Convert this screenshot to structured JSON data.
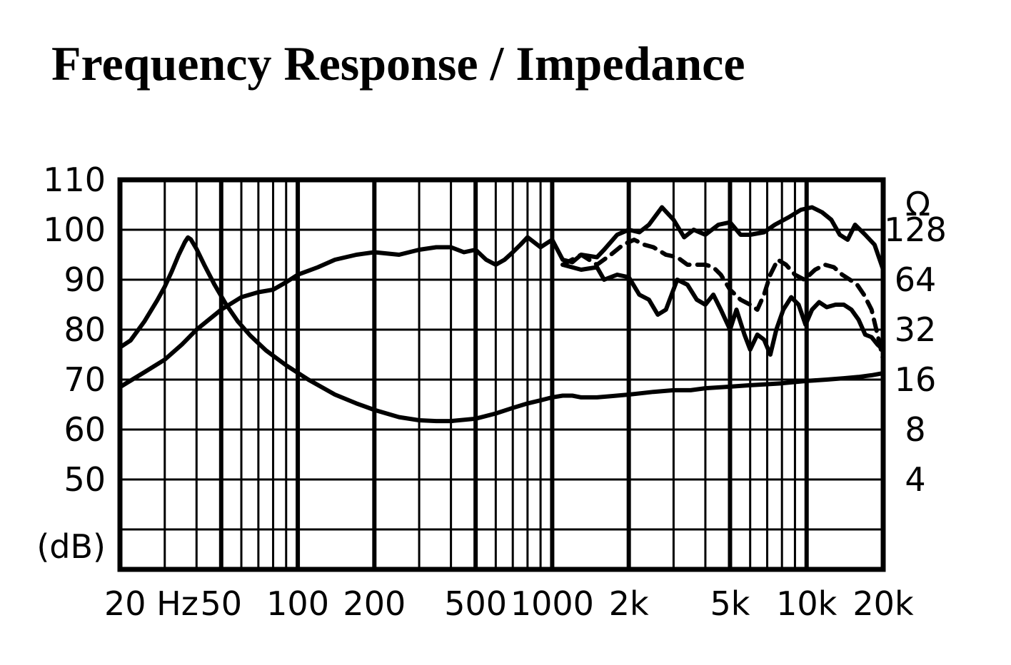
{
  "chart_data": {
    "type": "line",
    "title": "Frequency Response / Impedance",
    "x_scale": "log",
    "xlim": [
      20,
      20000
    ],
    "x_ticks": [
      {
        "value": 20,
        "label": "20 Hz"
      },
      {
        "value": 50,
        "label": "50"
      },
      {
        "value": 100,
        "label": "100"
      },
      {
        "value": 200,
        "label": "200"
      },
      {
        "value": 500,
        "label": "500"
      },
      {
        "value": 1000,
        "label": "1000"
      },
      {
        "value": 2000,
        "label": "2k"
      },
      {
        "value": 5000,
        "label": "5k"
      },
      {
        "value": 10000,
        "label": "10k"
      },
      {
        "value": 20000,
        "label": "20k"
      }
    ],
    "ylim": [
      32,
      110
    ],
    "y_ticks": [
      {
        "value": 110,
        "label": "110"
      },
      {
        "value": 100,
        "label": "100"
      },
      {
        "value": 90,
        "label": "90"
      },
      {
        "value": 80,
        "label": "80"
      },
      {
        "value": 70,
        "label": "70"
      },
      {
        "value": 60,
        "label": "60"
      },
      {
        "value": 50,
        "label": "50"
      }
    ],
    "ylabel": "(dB)",
    "y2_scale": "log2",
    "y2_unit": "Ω",
    "y2_ticks": [
      {
        "value": 128,
        "label": "128"
      },
      {
        "value": 64,
        "label": "64"
      },
      {
        "value": 32,
        "label": "32"
      },
      {
        "value": 16,
        "label": "16"
      },
      {
        "value": 8,
        "label": "8"
      },
      {
        "value": 4,
        "label": "4"
      }
    ],
    "grid": true,
    "series": [
      {
        "style": "solid",
        "axis": "y",
        "points": [
          [
            20,
            68.5
          ],
          [
            25,
            71.5
          ],
          [
            30,
            74
          ],
          [
            35,
            77
          ],
          [
            40,
            80
          ],
          [
            50,
            84
          ],
          [
            60,
            86.5
          ],
          [
            70,
            87.5
          ],
          [
            80,
            88
          ],
          [
            90,
            89.5
          ],
          [
            100,
            91
          ],
          [
            120,
            92.5
          ],
          [
            140,
            94
          ],
          [
            170,
            95
          ],
          [
            200,
            95.5
          ],
          [
            250,
            95
          ],
          [
            300,
            96
          ],
          [
            350,
            96.5
          ],
          [
            400,
            96.5
          ],
          [
            450,
            95.5
          ],
          [
            500,
            96
          ],
          [
            550,
            94
          ],
          [
            600,
            93
          ],
          [
            650,
            94
          ],
          [
            700,
            95.5
          ],
          [
            750,
            97
          ],
          [
            800,
            98.5
          ],
          [
            900,
            96.5
          ],
          [
            1000,
            98
          ],
          [
            1100,
            94
          ],
          [
            1200,
            93.5
          ],
          [
            1300,
            95
          ],
          [
            1500,
            94.5
          ],
          [
            1600,
            96
          ],
          [
            1800,
            99
          ],
          [
            2000,
            100
          ],
          [
            2200,
            99.5
          ],
          [
            2400,
            101
          ],
          [
            2700,
            104.5
          ],
          [
            3000,
            102
          ],
          [
            3300,
            98.5
          ],
          [
            3600,
            100
          ],
          [
            4000,
            99
          ],
          [
            4500,
            101
          ],
          [
            5000,
            101.5
          ],
          [
            5500,
            99
          ],
          [
            6000,
            99
          ],
          [
            6800,
            99.5
          ],
          [
            7500,
            101
          ],
          [
            8500,
            102.5
          ],
          [
            9500,
            104
          ],
          [
            10500,
            104.5
          ],
          [
            11500,
            103.5
          ],
          [
            12500,
            102
          ],
          [
            13500,
            99
          ],
          [
            14500,
            98
          ],
          [
            15500,
            101
          ],
          [
            17000,
            99
          ],
          [
            18500,
            97
          ],
          [
            20000,
            92
          ]
        ]
      },
      {
        "style": "dashed",
        "axis": "y",
        "points": [
          [
            1100,
            93
          ],
          [
            1300,
            95
          ],
          [
            1500,
            93
          ],
          [
            1700,
            95
          ],
          [
            1900,
            97
          ],
          [
            2100,
            98
          ],
          [
            2300,
            97
          ],
          [
            2500,
            96.5
          ],
          [
            2800,
            95
          ],
          [
            3100,
            94.5
          ],
          [
            3400,
            93
          ],
          [
            3700,
            93
          ],
          [
            4000,
            93
          ],
          [
            4300,
            92.5
          ],
          [
            4600,
            91
          ],
          [
            5000,
            88
          ],
          [
            5500,
            86
          ],
          [
            6000,
            85
          ],
          [
            6400,
            84
          ],
          [
            6800,
            87
          ],
          [
            7200,
            91
          ],
          [
            7700,
            94
          ],
          [
            8300,
            93
          ],
          [
            9000,
            91
          ],
          [
            9800,
            90
          ],
          [
            10800,
            92
          ],
          [
            11800,
            93
          ],
          [
            12800,
            92.5
          ],
          [
            13800,
            91
          ],
          [
            14800,
            90
          ],
          [
            15800,
            89
          ],
          [
            16800,
            87
          ],
          [
            18000,
            84
          ],
          [
            19200,
            78
          ],
          [
            20000,
            74
          ]
        ]
      },
      {
        "style": "solid",
        "axis": "y",
        "points": [
          [
            1100,
            93
          ],
          [
            1300,
            92
          ],
          [
            1500,
            92.5
          ],
          [
            1600,
            90
          ],
          [
            1800,
            91
          ],
          [
            2000,
            90.5
          ],
          [
            2200,
            87
          ],
          [
            2400,
            86
          ],
          [
            2600,
            83
          ],
          [
            2800,
            84
          ],
          [
            3100,
            90
          ],
          [
            3400,
            89
          ],
          [
            3700,
            86
          ],
          [
            4000,
            85
          ],
          [
            4300,
            87
          ],
          [
            4600,
            84
          ],
          [
            5000,
            80
          ],
          [
            5300,
            84
          ],
          [
            5700,
            79
          ],
          [
            6000,
            76
          ],
          [
            6400,
            79
          ],
          [
            6800,
            78
          ],
          [
            7200,
            75
          ],
          [
            7600,
            80
          ],
          [
            8100,
            84
          ],
          [
            8700,
            86.5
          ],
          [
            9300,
            85
          ],
          [
            9900,
            81
          ],
          [
            10500,
            84
          ],
          [
            11200,
            85.5
          ],
          [
            12000,
            84.5
          ],
          [
            13000,
            85
          ],
          [
            14000,
            85
          ],
          [
            15000,
            84
          ],
          [
            16000,
            82
          ],
          [
            17000,
            79
          ],
          [
            18000,
            78.5
          ],
          [
            19000,
            77
          ],
          [
            20000,
            76
          ]
        ]
      },
      {
        "style": "solid",
        "axis": "y2",
        "points": [
          [
            20,
            25
          ],
          [
            22,
            27.5
          ],
          [
            25,
            36
          ],
          [
            28,
            48
          ],
          [
            30,
            58
          ],
          [
            32,
            72
          ],
          [
            34,
            90
          ],
          [
            36,
            108
          ],
          [
            37,
            115
          ],
          [
            38,
            112
          ],
          [
            40,
            98
          ],
          [
            43,
            78
          ],
          [
            47,
            60
          ],
          [
            52,
            46
          ],
          [
            58,
            36
          ],
          [
            65,
            29.5
          ],
          [
            75,
            24
          ],
          [
            90,
            19.5
          ],
          [
            110,
            16
          ],
          [
            140,
            13
          ],
          [
            170,
            11.5
          ],
          [
            200,
            10.5
          ],
          [
            250,
            9.5
          ],
          [
            300,
            9.1
          ],
          [
            350,
            9
          ],
          [
            400,
            9
          ],
          [
            500,
            9.3
          ],
          [
            600,
            10
          ],
          [
            700,
            10.8
          ],
          [
            800,
            11.5
          ],
          [
            900,
            12
          ],
          [
            1000,
            12.5
          ],
          [
            1100,
            12.8
          ],
          [
            1200,
            12.8
          ],
          [
            1300,
            12.5
          ],
          [
            1500,
            12.5
          ],
          [
            1700,
            12.7
          ],
          [
            2000,
            13
          ],
          [
            2500,
            13.5
          ],
          [
            3000,
            13.8
          ],
          [
            3500,
            13.8
          ],
          [
            4000,
            14.2
          ],
          [
            5000,
            14.5
          ],
          [
            6000,
            14.8
          ],
          [
            7000,
            15
          ],
          [
            8000,
            15.2
          ],
          [
            10000,
            15.7
          ],
          [
            12000,
            16
          ],
          [
            14000,
            16.3
          ],
          [
            16000,
            16.6
          ],
          [
            18000,
            17
          ],
          [
            20000,
            17.5
          ]
        ]
      }
    ]
  }
}
